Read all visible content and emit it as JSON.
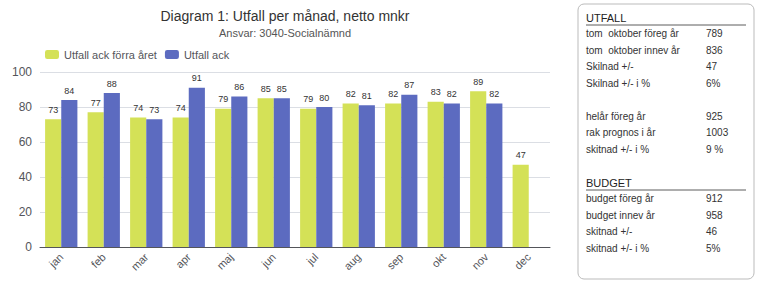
{
  "chart_data": {
    "type": "bar",
    "title": "Diagram 1: Utfall per månad, netto mnkr",
    "subtitle": "Ansvar: 3040-Socialnämnd",
    "categories": [
      "jan",
      "feb",
      "mar",
      "apr",
      "maj",
      "jun",
      "jul",
      "aug",
      "sep",
      "okt",
      "nov",
      "dec"
    ],
    "series": [
      {
        "name": "Utfall ack förra året",
        "color": "#d4e157",
        "values": [
          73,
          77,
          74,
          74,
          79,
          85,
          79,
          82,
          82,
          83,
          89,
          47
        ]
      },
      {
        "name": "Utfall ack",
        "color": "#5c6bc0",
        "values": [
          84,
          88,
          73,
          91,
          86,
          85,
          80,
          81,
          87,
          82,
          82,
          null
        ]
      }
    ],
    "ylim": [
      0,
      100
    ],
    "yticks": [
      0,
      20,
      40,
      60,
      80,
      100
    ],
    "grid": true,
    "legend": "top",
    "data_labels": true,
    "annotations": [
      [
        [
          "UTFALL"
        ],
        [
          "tom  oktober föreg år",
          "789"
        ],
        [
          "tom  oktober innev år",
          "836"
        ],
        [
          "Skilnad +/-",
          "47"
        ],
        [
          "Skilnad +/- i %",
          "6%"
        ]
      ],
      [
        [
          "helår föreg år",
          "925"
        ],
        [
          "rak prognos i år",
          "1003"
        ],
        [
          "skitnad +/- i %",
          "9 %"
        ]
      ],
      [
        [
          "BUDGET"
        ],
        [
          "budget föreg år",
          "912"
        ],
        [
          "budget innev år",
          "958"
        ],
        [
          "skitnad +/-",
          "46"
        ],
        [
          "skitnad +/- i %",
          "5%"
        ]
      ]
    ]
  }
}
